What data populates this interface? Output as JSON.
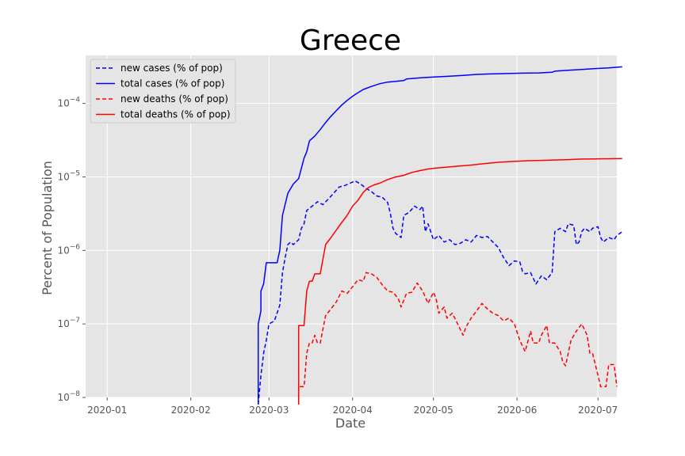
{
  "chart_data": {
    "type": "line",
    "title": "Greece",
    "xlabel": "Date",
    "ylabel": "Percent of Population",
    "y_scale": "log",
    "ylim": [
      "1e-8",
      "4.5e-4"
    ],
    "xlim": [
      "2019-12-24",
      "2020-07-08"
    ],
    "grid": true,
    "legend_position": "top-left",
    "x_ticks": [
      "2020-01",
      "2020-02",
      "2020-03",
      "2020-04",
      "2020-05",
      "2020-06",
      "2020-07"
    ],
    "y_ticks": [
      {
        "value": "1e-8",
        "base": "10",
        "exp": "−8"
      },
      {
        "value": "1e-7",
        "base": "10",
        "exp": "−7"
      },
      {
        "value": "1e-6",
        "base": "10",
        "exp": "−6"
      },
      {
        "value": "1e-5",
        "base": "10",
        "exp": "−5"
      },
      {
        "value": "1e-4",
        "base": "10",
        "exp": "−4"
      }
    ],
    "series": [
      {
        "name": "new cases (% of pop)",
        "color": "#0000ff",
        "dash": true,
        "points": [
          [
            "2020-02-26",
            "8e-9"
          ],
          [
            "2020-02-27",
            "2e-8"
          ],
          [
            "2020-02-28",
            "4e-8"
          ],
          [
            "2020-02-29",
            "6e-8"
          ],
          [
            "2020-03-01",
            "1e-7"
          ],
          [
            "2020-03-03",
            "1.1e-7"
          ],
          [
            "2020-03-05",
            "1.8e-7"
          ],
          [
            "2020-03-06",
            "5e-7"
          ],
          [
            "2020-03-07",
            "8e-7"
          ],
          [
            "2020-03-08",
            "1.2e-6"
          ],
          [
            "2020-03-09",
            "1.3e-6"
          ],
          [
            "2020-03-10",
            "1.2e-6"
          ],
          [
            "2020-03-12",
            "1.4e-6"
          ],
          [
            "2020-03-13",
            "2e-6"
          ],
          [
            "2020-03-14",
            "2.3e-6"
          ],
          [
            "2020-03-15",
            "3.5e-6"
          ],
          [
            "2020-03-17",
            "4e-6"
          ],
          [
            "2020-03-19",
            "4.6e-6"
          ],
          [
            "2020-03-21",
            "4.2e-6"
          ],
          [
            "2020-03-23",
            "5e-6"
          ],
          [
            "2020-03-25",
            "6e-6"
          ],
          [
            "2020-03-27",
            "7.3e-6"
          ],
          [
            "2020-03-29",
            "7.6e-6"
          ],
          [
            "2020-03-31",
            "8.2e-6"
          ],
          [
            "2020-04-02",
            "8.8e-6"
          ],
          [
            "2020-04-04",
            "8e-6"
          ],
          [
            "2020-04-06",
            "7e-6"
          ],
          [
            "2020-04-08",
            "6.3e-6"
          ],
          [
            "2020-04-10",
            "5.5e-6"
          ],
          [
            "2020-04-12",
            "5.3e-6"
          ],
          [
            "2020-04-14",
            "4.5e-6"
          ],
          [
            "2020-04-15",
            "3.2e-6"
          ],
          [
            "2020-04-16",
            "2e-6"
          ],
          [
            "2020-04-17",
            "1.7e-6"
          ],
          [
            "2020-04-19",
            "1.5e-6"
          ],
          [
            "2020-04-20",
            "3e-6"
          ],
          [
            "2020-04-22",
            "3.3e-6"
          ],
          [
            "2020-04-24",
            "4e-6"
          ],
          [
            "2020-04-26",
            "3.6e-6"
          ],
          [
            "2020-04-27",
            "4e-6"
          ],
          [
            "2020-04-28",
            "1.8e-6"
          ],
          [
            "2020-04-29",
            "2.3e-6"
          ],
          [
            "2020-05-01",
            "1.4e-6"
          ],
          [
            "2020-05-03",
            "1.6e-6"
          ],
          [
            "2020-05-05",
            "1.3e-6"
          ],
          [
            "2020-05-07",
            "1.4e-6"
          ],
          [
            "2020-05-09",
            "1.2e-6"
          ],
          [
            "2020-05-11",
            "1.25e-6"
          ],
          [
            "2020-05-13",
            "1.4e-6"
          ],
          [
            "2020-05-15",
            "1.3e-6"
          ],
          [
            "2020-05-17",
            "1.6e-6"
          ],
          [
            "2020-05-19",
            "1.5e-6"
          ],
          [
            "2020-05-21",
            "1.55e-6"
          ],
          [
            "2020-05-23",
            "1.3e-6"
          ],
          [
            "2020-05-25",
            "1.1e-6"
          ],
          [
            "2020-05-27",
            "8e-7"
          ],
          [
            "2020-05-29",
            "6.2e-7"
          ],
          [
            "2020-05-31",
            "7.2e-7"
          ],
          [
            "2020-06-02",
            "7e-7"
          ],
          [
            "2020-06-03",
            "5.2e-7"
          ],
          [
            "2020-06-04",
            "4.8e-7"
          ],
          [
            "2020-06-06",
            "5e-7"
          ],
          [
            "2020-06-08",
            "3.5e-7"
          ],
          [
            "2020-06-10",
            "4.5e-7"
          ],
          [
            "2020-06-12",
            "4e-7"
          ],
          [
            "2020-06-14",
            "5e-7"
          ],
          [
            "2020-06-15",
            "1.8e-6"
          ],
          [
            "2020-06-17",
            "2e-6"
          ],
          [
            "2020-06-19",
            "1.8e-6"
          ],
          [
            "2020-06-20",
            "2.3e-6"
          ],
          [
            "2020-06-22",
            "2.2e-6"
          ],
          [
            "2020-06-23",
            "1.2e-6"
          ],
          [
            "2020-06-24",
            "1.3e-6"
          ],
          [
            "2020-06-25",
            "1.8e-6"
          ],
          [
            "2020-06-26",
            "2e-6"
          ],
          [
            "2020-06-28",
            "1.8e-6"
          ],
          [
            "2020-06-29",
            "2e-6"
          ],
          [
            "2020-07-01",
            "2.1e-6"
          ],
          [
            "2020-07-02",
            "1.5e-6"
          ],
          [
            "2020-07-03",
            "1.3e-6"
          ],
          [
            "2020-07-05",
            "1.5e-6"
          ],
          [
            "2020-07-07",
            "1.4e-6"
          ],
          [
            "2020-07-08",
            "1.6e-6"
          ],
          [
            "2020-07-10",
            "1.8e-6"
          ]
        ]
      },
      {
        "name": "total cases (% of pop)",
        "color": "#0000ff",
        "dash": false,
        "points": [
          [
            "2020-02-26",
            "8e-9"
          ],
          [
            "2020-02-26",
            "1e-7"
          ],
          [
            "2020-02-27",
            "1.5e-7"
          ],
          [
            "2020-02-27",
            "2.8e-7"
          ],
          [
            "2020-02-28",
            "3.5e-7"
          ],
          [
            "2020-02-29",
            "6.8e-7"
          ],
          [
            "2020-03-01",
            "6.8e-7"
          ],
          [
            "2020-03-04",
            "6.8e-7"
          ],
          [
            "2020-03-05",
            "1e-6"
          ],
          [
            "2020-03-06",
            "3e-6"
          ],
          [
            "2020-03-08",
            "6e-6"
          ],
          [
            "2020-03-10",
            "8e-6"
          ],
          [
            "2020-03-12",
            "9.5e-6"
          ],
          [
            "2020-03-14",
            "1.8e-5"
          ],
          [
            "2020-03-15",
            "2.2e-5"
          ],
          [
            "2020-03-16",
            "3.1e-5"
          ],
          [
            "2020-03-18",
            "3.6e-5"
          ],
          [
            "2020-03-20",
            "4.4e-5"
          ],
          [
            "2020-03-22",
            "5.5e-5"
          ],
          [
            "2020-03-24",
            "6.7e-5"
          ],
          [
            "2020-03-26",
            "8e-5"
          ],
          [
            "2020-03-28",
            "9.5e-5"
          ],
          [
            "2020-03-30",
            "1.1e-4"
          ],
          [
            "2020-04-01",
            "1.25e-4"
          ],
          [
            "2020-04-03",
            "1.4e-4"
          ],
          [
            "2020-04-05",
            "1.55e-4"
          ],
          [
            "2020-04-08",
            "1.7e-4"
          ],
          [
            "2020-04-11",
            "1.85e-4"
          ],
          [
            "2020-04-14",
            "1.95e-4"
          ],
          [
            "2020-04-17",
            "2e-4"
          ],
          [
            "2020-04-20",
            "2.05e-4"
          ],
          [
            "2020-04-21",
            "2.15e-4"
          ],
          [
            "2020-04-24",
            "2.2e-4"
          ],
          [
            "2020-04-28",
            "2.25e-4"
          ],
          [
            "2020-05-02",
            "2.3e-4"
          ],
          [
            "2020-05-07",
            "2.35e-4"
          ],
          [
            "2020-05-12",
            "2.4e-4"
          ],
          [
            "2020-05-17",
            "2.48e-4"
          ],
          [
            "2020-05-22",
            "2.52e-4"
          ],
          [
            "2020-05-28",
            "2.55e-4"
          ],
          [
            "2020-06-03",
            "2.58e-4"
          ],
          [
            "2020-06-09",
            "2.6e-4"
          ],
          [
            "2020-06-14",
            "2.65e-4"
          ],
          [
            "2020-06-15",
            "2.75e-4"
          ],
          [
            "2020-06-20",
            "2.82e-4"
          ],
          [
            "2020-06-25",
            "2.9e-4"
          ],
          [
            "2020-06-30",
            "2.98e-4"
          ],
          [
            "2020-07-05",
            "3.05e-4"
          ],
          [
            "2020-07-10",
            "3.15e-4"
          ]
        ]
      },
      {
        "name": "new deaths (% of pop)",
        "color": "#ff0000",
        "dash": true,
        "points": [
          [
            "2020-03-12",
            "8e-9"
          ],
          [
            "2020-03-12",
            "1.4e-8"
          ],
          [
            "2020-03-14",
            "1.4e-8"
          ],
          [
            "2020-03-15",
            "4e-8"
          ],
          [
            "2020-03-16",
            "5.5e-8"
          ],
          [
            "2020-03-17",
            "5.5e-8"
          ],
          [
            "2020-03-18",
            "7e-8"
          ],
          [
            "2020-03-19",
            "5.5e-8"
          ],
          [
            "2020-03-20",
            "5.5e-8"
          ],
          [
            "2020-03-22",
            "1.3e-7"
          ],
          [
            "2020-03-24",
            "1.6e-7"
          ],
          [
            "2020-03-26",
            "2e-7"
          ],
          [
            "2020-03-28",
            "2.8e-7"
          ],
          [
            "2020-03-30",
            "2.6e-7"
          ],
          [
            "2020-04-01",
            "3.2e-7"
          ],
          [
            "2020-04-03",
            "4e-7"
          ],
          [
            "2020-04-05",
            "3.8e-7"
          ],
          [
            "2020-04-06",
            "5e-7"
          ],
          [
            "2020-04-08",
            "4.8e-7"
          ],
          [
            "2020-04-10",
            "4.3e-7"
          ],
          [
            "2020-04-12",
            "3.4e-7"
          ],
          [
            "2020-04-14",
            "2.8e-7"
          ],
          [
            "2020-04-16",
            "2.7e-7"
          ],
          [
            "2020-04-18",
            "2.2e-7"
          ],
          [
            "2020-04-19",
            "1.7e-7"
          ],
          [
            "2020-04-21",
            "2.6e-7"
          ],
          [
            "2020-04-23",
            "2.7e-7"
          ],
          [
            "2020-04-25",
            "3.6e-7"
          ],
          [
            "2020-04-27",
            "2.8e-7"
          ],
          [
            "2020-04-29",
            "1.9e-7"
          ],
          [
            "2020-05-01",
            "2.7e-7"
          ],
          [
            "2020-05-02",
            "2.2e-7"
          ],
          [
            "2020-05-03",
            "1.4e-7"
          ],
          [
            "2020-05-05",
            "1.7e-7"
          ],
          [
            "2020-05-06",
            "1.2e-7"
          ],
          [
            "2020-05-08",
            "1.4e-7"
          ],
          [
            "2020-05-10",
            "1e-7"
          ],
          [
            "2020-05-12",
            "7e-8"
          ],
          [
            "2020-05-13",
            "9e-8"
          ],
          [
            "2020-05-15",
            "1.2e-7"
          ],
          [
            "2020-05-17",
            "1.5e-7"
          ],
          [
            "2020-05-19",
            "1.9e-7"
          ],
          [
            "2020-05-21",
            "1.6e-7"
          ],
          [
            "2020-05-23",
            "1.4e-7"
          ],
          [
            "2020-05-25",
            "1.3e-7"
          ],
          [
            "2020-05-27",
            "1.1e-7"
          ],
          [
            "2020-05-29",
            "1.2e-7"
          ],
          [
            "2020-05-31",
            "1e-7"
          ],
          [
            "2020-06-02",
            "6e-8"
          ],
          [
            "2020-06-03",
            "5e-8"
          ],
          [
            "2020-06-04",
            "4.2e-8"
          ],
          [
            "2020-06-06",
            "8e-8"
          ],
          [
            "2020-06-07",
            "5.5e-8"
          ],
          [
            "2020-06-09",
            "5.5e-8"
          ],
          [
            "2020-06-10",
            "7e-8"
          ],
          [
            "2020-06-12",
            "9.5e-8"
          ],
          [
            "2020-06-13",
            "5.5e-8"
          ],
          [
            "2020-06-15",
            "5.5e-8"
          ],
          [
            "2020-06-17",
            "4.2e-8"
          ],
          [
            "2020-06-18",
            "3e-8"
          ],
          [
            "2020-06-19",
            "2.7e-8"
          ],
          [
            "2020-06-21",
            "6e-8"
          ],
          [
            "2020-06-23",
            "8e-8"
          ],
          [
            "2020-06-25",
            "1e-7"
          ],
          [
            "2020-06-27",
            "7e-8"
          ],
          [
            "2020-06-28",
            "4e-8"
          ],
          [
            "2020-06-29",
            "4e-8"
          ],
          [
            "2020-07-01",
            "2e-8"
          ],
          [
            "2020-07-02",
            "1.4e-8"
          ],
          [
            "2020-07-04",
            "1.4e-8"
          ],
          [
            "2020-07-05",
            "2.8e-8"
          ],
          [
            "2020-07-07",
            "2.8e-8"
          ],
          [
            "2020-07-08",
            "1.4e-8"
          ]
        ]
      },
      {
        "name": "total deaths (% of pop)",
        "color": "#ff0000",
        "dash": false,
        "points": [
          [
            "2020-03-12",
            "8e-9"
          ],
          [
            "2020-03-12",
            "9.5e-8"
          ],
          [
            "2020-03-14",
            "9.5e-8"
          ],
          [
            "2020-03-15",
            "2.8e-7"
          ],
          [
            "2020-03-16",
            "3.8e-7"
          ],
          [
            "2020-03-17",
            "3.8e-7"
          ],
          [
            "2020-03-18",
            "4.8e-7"
          ],
          [
            "2020-03-20",
            "4.8e-7"
          ],
          [
            "2020-03-22",
            "1.2e-6"
          ],
          [
            "2020-03-24",
            "1.5e-6"
          ],
          [
            "2020-03-26",
            "1.9e-6"
          ],
          [
            "2020-03-28",
            "2.4e-6"
          ],
          [
            "2020-03-30",
            "3e-6"
          ],
          [
            "2020-04-01",
            "4e-6"
          ],
          [
            "2020-04-03",
            "4.8e-6"
          ],
          [
            "2020-04-05",
            "6.2e-6"
          ],
          [
            "2020-04-07",
            "7.2e-6"
          ],
          [
            "2020-04-09",
            "7.8e-6"
          ],
          [
            "2020-04-11",
            "8.2e-6"
          ],
          [
            "2020-04-14",
            "9.2e-6"
          ],
          [
            "2020-04-17",
            "1e-5"
          ],
          [
            "2020-04-20",
            "1.05e-5"
          ],
          [
            "2020-04-23",
            "1.15e-5"
          ],
          [
            "2020-04-26",
            "1.22e-5"
          ],
          [
            "2020-04-29",
            "1.28e-5"
          ],
          [
            "2020-05-02",
            "1.32e-5"
          ],
          [
            "2020-05-06",
            "1.36e-5"
          ],
          [
            "2020-05-10",
            "1.4e-5"
          ],
          [
            "2020-05-15",
            "1.45e-5"
          ],
          [
            "2020-05-20",
            "1.52e-5"
          ],
          [
            "2020-05-25",
            "1.58e-5"
          ],
          [
            "2020-05-30",
            "1.62e-5"
          ],
          [
            "2020-06-05",
            "1.66e-5"
          ],
          [
            "2020-06-10",
            "1.68e-5"
          ],
          [
            "2020-06-15",
            "1.7e-5"
          ],
          [
            "2020-06-20",
            "1.72e-5"
          ],
          [
            "2020-06-25",
            "1.75e-5"
          ],
          [
            "2020-06-30",
            "1.76e-5"
          ],
          [
            "2020-07-05",
            "1.77e-5"
          ],
          [
            "2020-07-10",
            "1.78e-5"
          ]
        ]
      }
    ]
  }
}
